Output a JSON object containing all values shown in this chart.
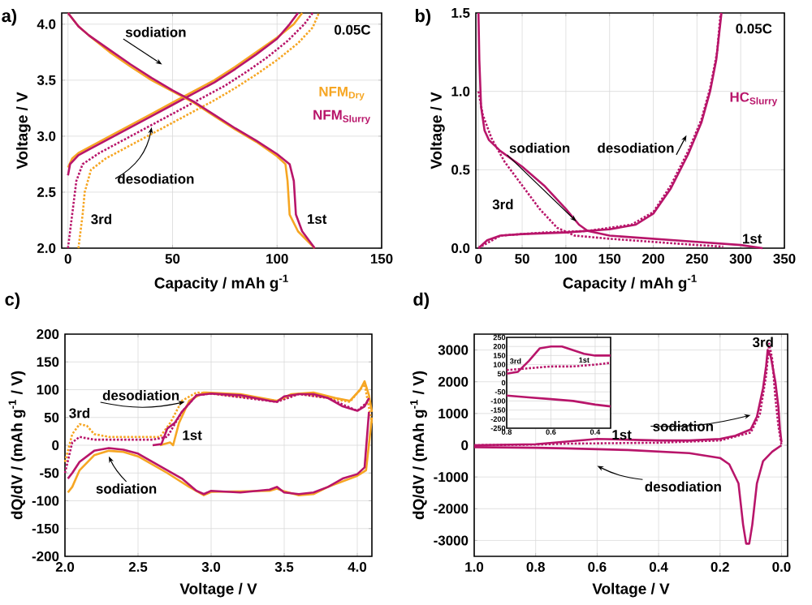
{
  "chart_data": [
    {
      "type": "line",
      "title": "a)",
      "xlabel": "Capacity / mAh g$^{-1}$",
      "ylabel": "Voltage / V",
      "xlim": [
        -3,
        150
      ],
      "ylim": [
        2.0,
        4.1
      ],
      "xticks": [
        0,
        50,
        100,
        150
      ],
      "yticks": [
        {
          "value": 2.0,
          "label": "2.0"
        },
        {
          "value": 2.5,
          "label": "2.5"
        },
        {
          "value": 3.0,
          "label": "3.0"
        },
        {
          "value": 3.5,
          "label": "3.5"
        },
        {
          "value": 4.0,
          "label": "4.0"
        }
      ],
      "grid": true,
      "annotations": [
        {
          "text": "sodiation",
          "x": 45,
          "y": 3.64
        },
        {
          "text": "desodiation",
          "x": 40,
          "y": 3.08
        },
        "0.05C",
        "3rd",
        "1st"
      ],
      "series": [
        {
          "name": "NFM$_{Dry}$",
          "color": "#f6a623",
          "line_style": "solid",
          "x": [
            0,
            2,
            5,
            10,
            20,
            30,
            40,
            50,
            60,
            70,
            80,
            90,
            100,
            108,
            112
          ],
          "values": [
            2.72,
            2.8,
            2.85,
            2.9,
            3.0,
            3.1,
            3.2,
            3.3,
            3.4,
            3.5,
            3.62,
            3.75,
            3.88,
            4.0,
            4.1
          ]
        },
        {
          "name": "NFM$_{Slurry}$",
          "color": "#b8156a",
          "line_style": "solid",
          "x": [
            0,
            1,
            5,
            10,
            20,
            30,
            40,
            50,
            60,
            70,
            80,
            90,
            100,
            106,
            110
          ],
          "values": [
            2.65,
            2.75,
            2.83,
            2.88,
            2.98,
            3.08,
            3.18,
            3.28,
            3.38,
            3.48,
            3.6,
            3.73,
            3.87,
            4.0,
            4.1
          ]
        },
        {
          "color": "#b8156a",
          "line_style": "dotted",
          "x": [
            0,
            2,
            4,
            7,
            15,
            25,
            35,
            45,
            55,
            65,
            75,
            85,
            95,
            105,
            113,
            117
          ],
          "values": [
            2.0,
            2.3,
            2.6,
            2.75,
            2.85,
            2.95,
            3.05,
            3.15,
            3.25,
            3.35,
            3.45,
            3.57,
            3.7,
            3.85,
            4.0,
            4.1
          ]
        },
        {
          "color": "#f6a623",
          "line_style": "dotted",
          "x": [
            5,
            7,
            8,
            11,
            18,
            30,
            40,
            50,
            60,
            70,
            80,
            90,
            100,
            110,
            117,
            120
          ],
          "values": [
            2.0,
            2.3,
            2.5,
            2.7,
            2.8,
            2.92,
            3.02,
            3.12,
            3.22,
            3.32,
            3.43,
            3.55,
            3.68,
            3.83,
            3.97,
            4.1
          ]
        },
        {
          "color": "#f6a623",
          "line_style": "solid",
          "x": [
            0,
            5,
            10,
            20,
            30,
            40,
            50,
            60,
            70,
            80,
            90,
            100,
            104,
            105,
            106,
            110,
            118
          ],
          "values": [
            4.1,
            3.98,
            3.9,
            3.75,
            3.62,
            3.5,
            3.4,
            3.3,
            3.18,
            3.06,
            2.95,
            2.82,
            2.75,
            2.6,
            2.3,
            2.15,
            2.0
          ]
        },
        {
          "color": "#b8156a",
          "line_style": "solid",
          "x": [
            0,
            5,
            10,
            20,
            30,
            40,
            50,
            60,
            70,
            80,
            90,
            100,
            106,
            108,
            109,
            112,
            118
          ],
          "values": [
            4.1,
            3.98,
            3.9,
            3.77,
            3.64,
            3.52,
            3.41,
            3.31,
            3.19,
            3.07,
            2.96,
            2.84,
            2.75,
            2.6,
            2.3,
            2.15,
            2.0
          ]
        }
      ]
    },
    {
      "type": "line",
      "title": "b)",
      "xlabel": "Capacity / mAh g$^{-1}$",
      "ylabel": "Voltage / V",
      "xlim": [
        -3,
        350
      ],
      "ylim": [
        0.0,
        1.5
      ],
      "xticks": [
        0,
        50,
        100,
        150,
        200,
        250,
        300,
        350
      ],
      "yticks": [
        {
          "value": 0.0,
          "label": "0.0"
        },
        {
          "value": 0.5,
          "label": "0.5"
        },
        {
          "value": 1.0,
          "label": "1.0"
        },
        {
          "value": 1.5,
          "label": "1.5"
        }
      ],
      "grid": true,
      "annotations": [
        "0.05C",
        {
          "text": "sodiation",
          "x": 112,
          "y": 0.17
        },
        {
          "text": "desodiation",
          "x": 238,
          "y": 0.72
        },
        "3rd",
        "1st"
      ],
      "series": [
        {
          "color": "#b8156a",
          "line_style": "solid",
          "x": [
            0,
            1,
            3,
            7,
            12,
            25,
            50,
            75,
            100,
            115,
            125,
            150,
            200,
            250,
            300,
            325
          ],
          "values": [
            1.5,
            1.2,
            0.9,
            0.75,
            0.69,
            0.62,
            0.52,
            0.4,
            0.25,
            0.15,
            0.11,
            0.08,
            0.06,
            0.04,
            0.02,
            0.0
          ]
        },
        {
          "color": "#b8156a",
          "line_style": "dotted",
          "x": [
            0,
            5,
            15,
            30,
            50,
            70,
            90,
            110,
            150,
            200,
            250,
            280
          ],
          "values": [
            1.0,
            0.85,
            0.7,
            0.55,
            0.4,
            0.25,
            0.13,
            0.08,
            0.06,
            0.04,
            0.02,
            0.01
          ]
        },
        {
          "name": "HC$_{Slurry}$",
          "color": "#b8156a",
          "line_style": "solid",
          "x": [
            0,
            10,
            25,
            50,
            100,
            150,
            180,
            200,
            220,
            240,
            255,
            265,
            272,
            276,
            278
          ],
          "values": [
            0.0,
            0.05,
            0.08,
            0.09,
            0.1,
            0.12,
            0.15,
            0.22,
            0.38,
            0.6,
            0.8,
            1.0,
            1.2,
            1.4,
            1.5
          ]
        },
        {
          "color": "#b8156a",
          "line_style": "dotted",
          "x": [
            0,
            25,
            75,
            125,
            175,
            200,
            220,
            240,
            255,
            265,
            273,
            277
          ],
          "values": [
            0.0,
            0.08,
            0.1,
            0.11,
            0.15,
            0.23,
            0.4,
            0.62,
            0.82,
            1.02,
            1.25,
            1.5
          ]
        }
      ]
    },
    {
      "type": "line",
      "title": "c)",
      "xlabel": "Voltage / V",
      "ylabel": "dQ/dV / (mAh g$^{-1}$ / V)",
      "xlim": [
        2.0,
        4.1
      ],
      "ylim": [
        -200,
        200
      ],
      "xticks": [
        {
          "value": 2.0,
          "label": "2.0"
        },
        {
          "value": 2.5,
          "label": "2.5"
        },
        {
          "value": 3.0,
          "label": "3.0"
        },
        {
          "value": 3.5,
          "label": "3.5"
        },
        {
          "value": 4.0,
          "label": "4.0"
        }
      ],
      "yticks": [
        -200,
        -150,
        -100,
        -50,
        0,
        50,
        100,
        150,
        200
      ],
      "grid": true,
      "annotations": [
        {
          "text": "desodiation",
          "x": 2.82,
          "y": 78
        },
        {
          "text": "sodiation",
          "x": 2.3,
          "y": -20
        },
        "3rd",
        "1st"
      ],
      "series": [
        {
          "color": "#f6a623",
          "line_style": "dotted",
          "x": [
            2.0,
            2.05,
            2.1,
            2.15,
            2.2,
            2.3,
            2.5,
            2.65,
            2.72,
            2.8,
            2.9,
            3.0,
            3.45,
            3.6,
            3.8,
            3.95,
            4.05,
            4.1
          ],
          "values": [
            -30,
            20,
            38,
            35,
            20,
            15,
            15,
            15,
            40,
            80,
            95,
            93,
            80,
            93,
            85,
            78,
            110,
            40
          ]
        },
        {
          "color": "#b8156a",
          "line_style": "dotted",
          "x": [
            2.0,
            2.05,
            2.1,
            2.2,
            2.4,
            2.6,
            2.7,
            2.8,
            2.9,
            3.0,
            3.45,
            3.6,
            3.8,
            4.0,
            4.08
          ],
          "values": [
            -50,
            5,
            15,
            10,
            10,
            10,
            15,
            60,
            90,
            93,
            78,
            92,
            85,
            62,
            80
          ]
        },
        {
          "color": "#f6a623",
          "line_style": "solid",
          "x": [
            2.65,
            2.72,
            2.74,
            2.78,
            2.85,
            2.95,
            3.2,
            3.45,
            3.55,
            3.7,
            3.85,
            3.95,
            4.02,
            4.05,
            4.08,
            4.1
          ],
          "values": [
            0,
            5,
            0,
            40,
            80,
            95,
            92,
            80,
            92,
            95,
            85,
            80,
            100,
            115,
            90,
            60
          ]
        },
        {
          "color": "#f6a623",
          "line_style": "solid",
          "x": [
            4.1,
            4.06,
            4.0,
            3.8,
            3.7,
            3.6,
            3.5,
            3.45,
            3.4,
            3.0,
            2.95,
            2.85,
            2.7,
            2.5,
            2.4,
            2.3,
            2.2,
            2.1,
            2.05,
            2.02
          ],
          "values": [
            50,
            -45,
            -55,
            -75,
            -88,
            -90,
            -83,
            -78,
            -82,
            -84,
            -90,
            -75,
            -50,
            -20,
            -12,
            -10,
            -18,
            -45,
            -75,
            -85
          ]
        },
        {
          "color": "#b8156a",
          "line_style": "solid",
          "x": [
            2.6,
            2.66,
            2.7,
            2.75,
            2.8,
            2.85,
            2.9,
            3.0,
            3.2,
            3.4,
            3.45,
            3.5,
            3.6,
            3.7,
            3.8,
            3.9,
            4.0,
            4.05,
            4.08
          ],
          "values": [
            0,
            2,
            30,
            40,
            60,
            75,
            90,
            93,
            90,
            80,
            78,
            88,
            92,
            92,
            85,
            70,
            62,
            70,
            85
          ]
        },
        {
          "color": "#b8156a",
          "line_style": "solid",
          "x": [
            4.08,
            4.05,
            4.0,
            3.9,
            3.8,
            3.7,
            3.6,
            3.5,
            3.45,
            3.4,
            3.2,
            3.0,
            2.95,
            2.9,
            2.8,
            2.7,
            2.6,
            2.5,
            2.4,
            2.3,
            2.2,
            2.1,
            2.05,
            2.02
          ],
          "values": [
            60,
            -40,
            -52,
            -60,
            -75,
            -85,
            -88,
            -85,
            -75,
            -80,
            -85,
            -82,
            -88,
            -82,
            -60,
            -45,
            -30,
            -15,
            -8,
            -5,
            -10,
            -30,
            -50,
            -60
          ]
        }
      ]
    },
    {
      "type": "line",
      "title": "d)",
      "xlabel": "Voltage / V",
      "ylabel": "dQ/dV / (mAh g$^{-1}$ / V)",
      "xlim": [
        1.0,
        -0.02
      ],
      "ylim": [
        -3500,
        3500
      ],
      "xticks": [
        {
          "value": 1.0,
          "label": "1.0"
        },
        {
          "value": 0.8,
          "label": "0.8"
        },
        {
          "value": 0.6,
          "label": "0.6"
        },
        {
          "value": 0.4,
          "label": "0.4"
        },
        {
          "value": 0.2,
          "label": "0.2"
        },
        {
          "value": 0.0,
          "label": "0.0"
        }
      ],
      "yticks": [
        -3000,
        -2000,
        -1000,
        0,
        1000,
        2000,
        3000
      ],
      "grid": true,
      "annotations": [
        {
          "text": "sodiation",
          "x": 0.1,
          "y": 950
        },
        {
          "text": "desodiation",
          "x": 0.6,
          "y": -650
        },
        "3rd",
        "1st"
      ],
      "series": [
        {
          "color": "#b8156a",
          "line_style": "dotted",
          "x": [
            1.0,
            0.8,
            0.7,
            0.6,
            0.4,
            0.2,
            0.1,
            0.07,
            0.05,
            0.04,
            0.03,
            0.02,
            0.01,
            0.0
          ],
          "values": [
            0,
            20,
            50,
            60,
            80,
            150,
            400,
            1000,
            2200,
            3200,
            2700,
            1500,
            600,
            0
          ]
        },
        {
          "color": "#b8156a",
          "line_style": "solid",
          "x": [
            1.0,
            0.8,
            0.6,
            0.4,
            0.3,
            0.2,
            0.15,
            0.1,
            0.08,
            0.06,
            0.05,
            0.045,
            0.035,
            0.02,
            0.01,
            0.005,
            0.0
          ],
          "values": [
            0,
            30,
            200,
            150,
            150,
            200,
            300,
            500,
            900,
            1800,
            2500,
            3000,
            2800,
            2000,
            1200,
            500,
            100
          ]
        },
        {
          "color": "#b8156a",
          "line_style": "solid",
          "x": [
            0.0,
            0.03,
            0.06,
            0.08,
            0.095,
            0.105,
            0.115,
            0.125,
            0.14,
            0.17,
            0.2,
            0.3,
            0.5,
            0.7,
            0.8,
            1.0
          ],
          "values": [
            0,
            -200,
            -500,
            -1200,
            -2500,
            -3100,
            -3100,
            -2500,
            -1200,
            -600,
            -400,
            -250,
            -150,
            -100,
            -80,
            -60
          ]
        }
      ]
    },
    {
      "type": "line",
      "xlim": [
        0.8,
        0.33
      ],
      "ylim": [
        -250,
        250
      ],
      "xticks": [
        {
          "value": 0.8,
          "label": "0.8"
        },
        {
          "value": 0.6,
          "label": "0.6"
        },
        {
          "value": 0.4,
          "label": "0.4"
        }
      ],
      "yticks": [
        -250,
        -200,
        -150,
        -100,
        -50,
        0,
        50,
        100,
        150,
        200,
        250
      ],
      "grid": true,
      "annotations": [
        "3rd",
        "1st"
      ],
      "series": [
        {
          "color": "#b8156a",
          "line_style": "dotted",
          "x": [
            0.8,
            0.7,
            0.6,
            0.5,
            0.4,
            0.33
          ],
          "values": [
            70,
            80,
            90,
            90,
            100,
            110
          ]
        },
        {
          "color": "#b8156a",
          "line_style": "solid",
          "x": [
            0.8,
            0.75,
            0.7,
            0.65,
            0.6,
            0.55,
            0.5,
            0.45,
            0.4,
            0.33
          ],
          "values": [
            50,
            60,
            120,
            190,
            200,
            200,
            180,
            160,
            150,
            150
          ]
        },
        {
          "color": "#b8156a",
          "line_style": "solid",
          "x": [
            0.8,
            0.7,
            0.6,
            0.5,
            0.4,
            0.33
          ],
          "values": [
            -70,
            -80,
            -90,
            -100,
            -120,
            -130
          ]
        }
      ]
    }
  ]
}
